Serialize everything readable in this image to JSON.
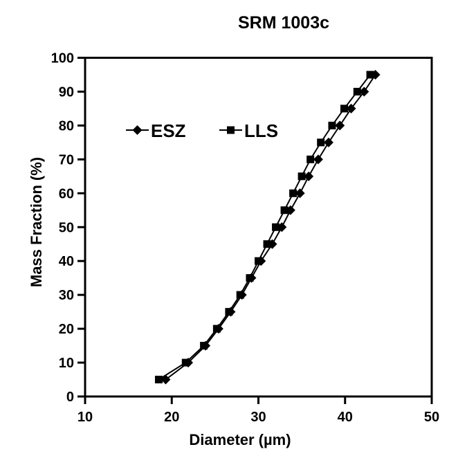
{
  "colors": {
    "foreground": "#000000",
    "background": "#ffffff"
  },
  "chart_data": {
    "type": "line",
    "title": "SRM 1003c",
    "xlabel": "Diameter (µm)",
    "ylabel": "Mass Fraction (%)",
    "xlim": [
      10,
      50
    ],
    "ylim": [
      0,
      100
    ],
    "x_ticks": [
      10,
      20,
      30,
      40,
      50
    ],
    "y_ticks": [
      0,
      10,
      20,
      30,
      40,
      50,
      60,
      70,
      80,
      90,
      100
    ],
    "grid": false,
    "legend_position": "inside-upper-left",
    "mass_fraction_percent": [
      5,
      10,
      15,
      20,
      25,
      30,
      35,
      40,
      45,
      50,
      55,
      60,
      65,
      70,
      75,
      80,
      85,
      90,
      95
    ],
    "series": [
      {
        "name": "ESZ",
        "marker": "diamond",
        "color": "#000000",
        "diameters_um": [
          19.3,
          21.9,
          23.9,
          25.4,
          26.8,
          28.1,
          29.2,
          30.3,
          31.6,
          32.7,
          33.7,
          34.8,
          35.8,
          36.9,
          38.1,
          39.4,
          40.7,
          42.2,
          43.5
        ]
      },
      {
        "name": "LLS",
        "marker": "square",
        "color": "#000000",
        "diameters_um": [
          18.5,
          21.6,
          23.7,
          25.2,
          26.6,
          27.9,
          29.0,
          30.0,
          31.0,
          32.0,
          33.0,
          34.0,
          35.0,
          36.0,
          37.2,
          38.5,
          39.9,
          41.4,
          42.9
        ]
      }
    ]
  }
}
